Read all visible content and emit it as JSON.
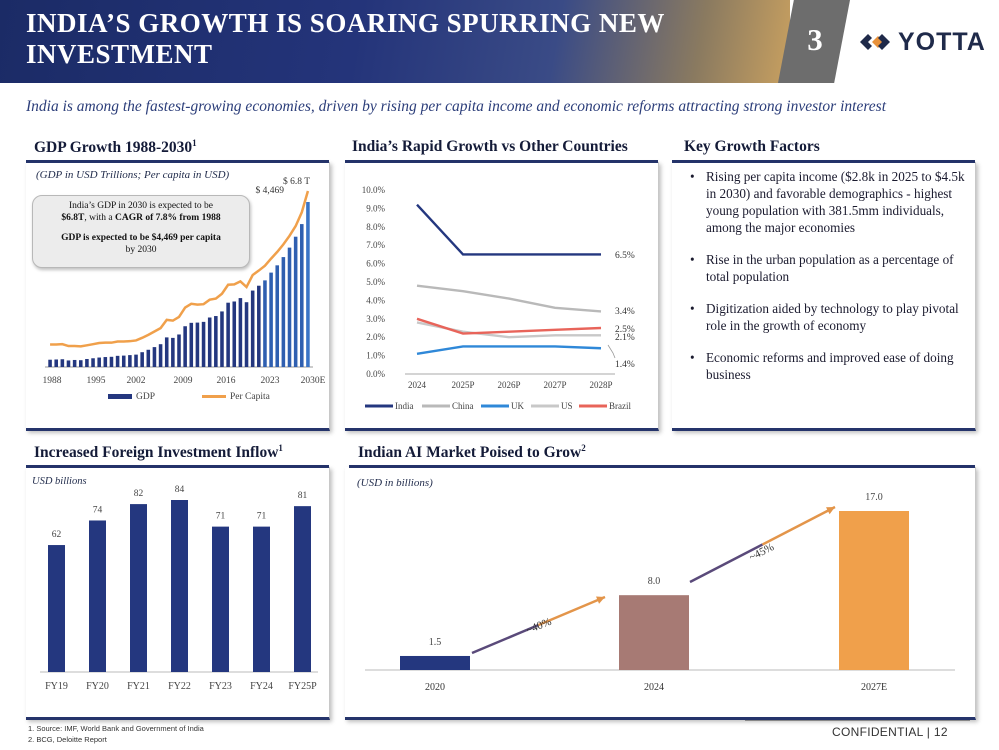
{
  "header": {
    "title": "INDIA’S GROWTH IS SOARING SPURRING NEW INVESTMENT",
    "page_number": "3",
    "logo_text": "YOTTA"
  },
  "subtitle": "India is among the fastest-growing economies, driven by rising per capita income and economic reforms attracting strong investor interest",
  "gdp_panel": {
    "title": "GDP Growth 1988-2030",
    "title_sup": "1",
    "note": "(GDP in USD Trillions; Per capita in USD)",
    "callout_line1_a": "India’s GDP in 2030 is expected to be",
    "callout_line1_b": "$6.8T",
    "callout_line1_c": ", with a ",
    "callout_line1_d": "CAGR of 7.8% from 1988",
    "callout_line2_a": "GDP is expected to be $4,469 per capita",
    "callout_line2_b": "by 2030",
    "label_per_capita": "$ 4,469",
    "label_gdp": "$ 6.8 T"
  },
  "growth_panel": {
    "title": "India’s Rapid Growth vs Other Countries"
  },
  "factors_panel": {
    "title": "Key Growth Factors",
    "items": [
      "Rising per capita income ($2.8k in 2025 to $4.5k in 2030) and favorable demographics - highest young population with 381.5mm individuals, among the major economies",
      "Rise in the urban population as a percentage of total population",
      "Digitization aided by technology to play pivotal role in the growth of economy",
      "Economic reforms and improved ease of doing business"
    ]
  },
  "fdi_panel": {
    "title": "Increased Foreign Investment Inflow",
    "title_sup": "1",
    "note": "USD billions"
  },
  "ai_panel": {
    "title": "Indian AI Market Poised to Grow",
    "title_sup": "2",
    "note": "(USD in billions)",
    "growth_1": "~40%",
    "growth_2": "~45%"
  },
  "footnotes": [
    "1.   Source: IMF, World Bank and Government of India",
    "2.   BCG, Deloitte Report"
  ],
  "confidential": "CONFIDENTIAL | 12",
  "colors": {
    "navy": "#24377f",
    "orange": "#f0a04b",
    "mauve": "#a77a74",
    "grey": "#b9b9b9",
    "uk_blue": "#2f88d8",
    "brazil": "#e8645a"
  },
  "chart_data": [
    {
      "id": "gdp",
      "type": "bar+line",
      "title": "GDP Growth 1988-2030",
      "x_tick_labels": [
        "1988",
        "1995",
        "2002",
        "2009",
        "2016",
        "2023",
        "2030E"
      ],
      "legend": [
        "GDP",
        "Per Capita"
      ],
      "series": [
        {
          "name": "GDP",
          "unit": "USD Trillions",
          "values": [
            0.3,
            0.31,
            0.32,
            0.27,
            0.29,
            0.28,
            0.33,
            0.36,
            0.39,
            0.41,
            0.42,
            0.46,
            0.47,
            0.49,
            0.51,
            0.61,
            0.71,
            0.82,
            0.94,
            1.22,
            1.2,
            1.34,
            1.68,
            1.82,
            1.83,
            1.86,
            2.04,
            2.1,
            2.29,
            2.65,
            2.7,
            2.84,
            2.67,
            3.15,
            3.35,
            3.57,
            3.89,
            4.19,
            4.53,
            4.92,
            5.37,
            5.89,
            6.8
          ]
        },
        {
          "name": "Per Capita",
          "unit": "USD",
          "values": [
            360,
            360,
            370,
            320,
            320,
            310,
            340,
            370,
            400,
            410,
            410,
            440,
            440,
            450,
            470,
            540,
            620,
            710,
            800,
            1020,
            1000,
            1100,
            1350,
            1450,
            1430,
            1440,
            1560,
            1590,
            1720,
            1960,
            1970,
            2050,
            1900,
            2220,
            2340,
            2470,
            2660,
            2840,
            3040,
            3270,
            3530,
            3900,
            4469
          ]
        }
      ]
    },
    {
      "id": "growth",
      "type": "line",
      "title": "India’s Rapid Growth vs Other Countries",
      "categories": [
        "2024",
        "2025P",
        "2026P",
        "2027P",
        "2028P"
      ],
      "y_tick_labels": [
        "0.0%",
        "1.0%",
        "2.0%",
        "3.0%",
        "4.0%",
        "5.0%",
        "6.0%",
        "7.0%",
        "8.0%",
        "9.0%",
        "10.0%"
      ],
      "ylim": [
        0,
        10
      ],
      "series": [
        {
          "name": "India",
          "values": [
            9.2,
            6.5,
            6.5,
            6.5,
            6.5
          ],
          "end_label": "6.5%"
        },
        {
          "name": "China",
          "values": [
            4.8,
            4.5,
            4.1,
            3.6,
            3.4
          ],
          "end_label": "3.4%"
        },
        {
          "name": "UK",
          "values": [
            1.1,
            1.5,
            1.5,
            1.5,
            1.4
          ],
          "end_label": "1.4%"
        },
        {
          "name": "US",
          "values": [
            2.8,
            2.3,
            2.0,
            2.1,
            2.1
          ],
          "end_label": "2.1%"
        },
        {
          "name": "Brazil",
          "values": [
            3.0,
            2.2,
            2.3,
            2.4,
            2.5
          ],
          "end_label": "2.5%"
        }
      ]
    },
    {
      "id": "fdi",
      "type": "bar",
      "title": "Increased Foreign Investment Inflow",
      "categories": [
        "FY19",
        "FY20",
        "FY21",
        "FY22",
        "FY23",
        "FY24",
        "FY25P"
      ],
      "values": [
        62,
        74,
        82,
        84,
        71,
        71,
        81
      ],
      "ylabel": "USD billions"
    },
    {
      "id": "ai",
      "type": "bar",
      "title": "Indian AI Market Poised to Grow",
      "categories": [
        "2020",
        "2024",
        "2027E"
      ],
      "values": [
        1.5,
        8.0,
        17.0
      ],
      "value_labels": [
        "1.5",
        "8.0",
        "17.0"
      ],
      "annotations": [
        "~40%",
        "~45%"
      ],
      "ylabel": "USD in billions"
    }
  ]
}
